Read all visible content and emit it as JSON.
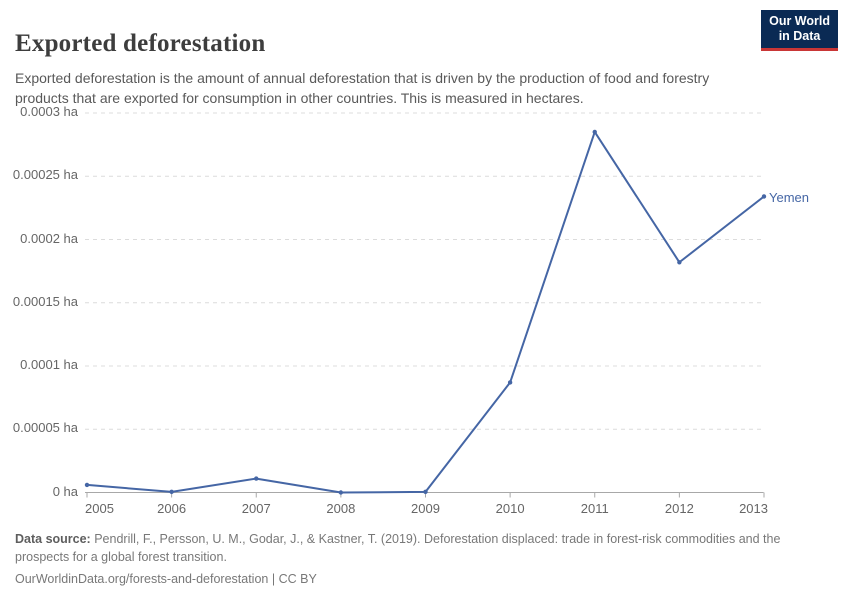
{
  "header": {
    "title": "Exported deforestation",
    "subtitle": "Exported deforestation is the amount of annual deforestation that is driven by the production of food and forestry products that are exported for consumption in other countries. This is measured in hectares.",
    "logo": {
      "line1": "Our World",
      "line2": "in Data",
      "bg_color": "#0a2a54",
      "accent_color": "#c93636"
    }
  },
  "chart_data": {
    "type": "line",
    "title": "Exported deforestation",
    "unit": "ha",
    "x": [
      2005,
      2006,
      2007,
      2008,
      2009,
      2010,
      2011,
      2012,
      2013
    ],
    "series": [
      {
        "name": "Yemen",
        "color": "#4566a5",
        "values": [
          6e-06,
          5e-07,
          1.1e-05,
          0,
          5e-07,
          8.7e-05,
          0.000285,
          0.000182,
          0.000234
        ]
      }
    ],
    "ylim": [
      0,
      0.0003
    ],
    "yticks": [
      {
        "value": 0,
        "label": "0 ha"
      },
      {
        "value": 5e-05,
        "label": "0.00005 ha"
      },
      {
        "value": 0.0001,
        "label": "0.0001 ha"
      },
      {
        "value": 0.00015,
        "label": "0.00015 ha"
      },
      {
        "value": 0.0002,
        "label": "0.0002 ha"
      },
      {
        "value": 0.00025,
        "label": "0.00025 ha"
      },
      {
        "value": 0.0003,
        "label": "0.0003 ha"
      }
    ],
    "xlabel": "",
    "ylabel": "",
    "grid": "horizontal-dashed",
    "legend_position": "end-of-line",
    "gridline_color": "#dcdcdc",
    "axis_color": "#a8a8a8",
    "tick_label_color": "#666666"
  },
  "footer": {
    "source_label": "Data source:",
    "source_text": "Pendrill, F., Persson, U. M., Godar, J., & Kastner, T. (2019). Deforestation displaced: trade in forest-risk commodities and the prospects for a global forest transition.",
    "link": "OurWorldinData.org/forests-and-deforestation",
    "separator": " | ",
    "license": "CC BY"
  }
}
